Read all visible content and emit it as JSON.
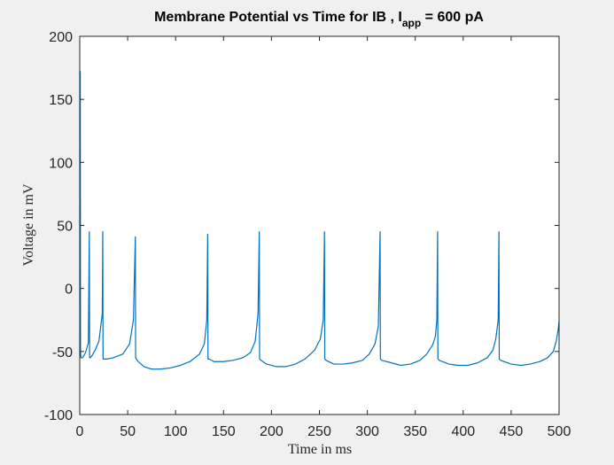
{
  "chart_data": {
    "type": "line",
    "title": {
      "pre": "Membrane Potential vs Time for  IB , I",
      "sub": "app",
      "post": " =  600  pA"
    },
    "xlabel": "Time in ms",
    "ylabel": "Voltage in mV",
    "xlim": [
      0,
      500
    ],
    "ylim": [
      -100,
      200
    ],
    "xticks": [
      0,
      50,
      100,
      150,
      200,
      250,
      300,
      350,
      400,
      450,
      500
    ],
    "yticks": [
      -100,
      -50,
      0,
      50,
      100,
      150,
      200
    ],
    "xtick_labels": [
      "0",
      "50",
      "100",
      "150",
      "200",
      "250",
      "300",
      "350",
      "400",
      "450",
      "500"
    ],
    "ytick_labels": [
      "-100",
      "-50",
      "0",
      "50",
      "100",
      "150",
      "200"
    ],
    "grid": false,
    "colors": {
      "line": "#0072bd",
      "axes_bg": "#ffffff",
      "figure_bg": "#f0f0f0",
      "axis": "#262626"
    },
    "series": [
      {
        "x": [
          0,
          0.5,
          0.8,
          1.2,
          3,
          6,
          9,
          10,
          10.3,
          11,
          13,
          16,
          20,
          23.5,
          24,
          24.3,
          25,
          28,
          35,
          45,
          52,
          56,
          58,
          58.3,
          59,
          61,
          67,
          75,
          84,
          95,
          105,
          115,
          125,
          130,
          132.5,
          133.5,
          133.8,
          135,
          140,
          150,
          160,
          170,
          178,
          183,
          186,
          187.3,
          187.6,
          189,
          195,
          205,
          215,
          225,
          235,
          245,
          251,
          254,
          255.3,
          255.6,
          257,
          265,
          275,
          285,
          295,
          302,
          308,
          311.5,
          313.3,
          313.6,
          315,
          325,
          335,
          345,
          355,
          362,
          368,
          371,
          372.5,
          373.3,
          373.6,
          375,
          385,
          395,
          405,
          415,
          425,
          431,
          434,
          436.5,
          437.3,
          437.6,
          439,
          450,
          460,
          470,
          480,
          488,
          494,
          497,
          499,
          500
        ],
        "y": [
          -50,
          172,
          -50,
          -55,
          -55,
          -51,
          -43,
          45,
          -55,
          -55,
          -53,
          -49,
          -42,
          -20,
          45,
          -56,
          -56,
          -56,
          -55,
          -52,
          -44,
          -25,
          41,
          -55,
          -56,
          -58,
          -62,
          -64,
          -64,
          -63,
          -61,
          -58,
          -52,
          -44,
          -25,
          43,
          -56,
          -56,
          -58,
          -58,
          -57,
          -55,
          -51,
          -42,
          -20,
          45,
          -56,
          -57,
          -60,
          -62,
          -62,
          -60,
          -56,
          -49,
          -40,
          -25,
          45,
          -56,
          -57,
          -60,
          -60,
          -59,
          -57,
          -52,
          -44,
          -30,
          45,
          -56,
          -57,
          -59,
          -61,
          -60,
          -57,
          -52,
          -45,
          -38,
          -25,
          45,
          -56,
          -57,
          -60,
          -61,
          -61,
          -59,
          -55,
          -49,
          -40,
          -25,
          45,
          -56,
          -57,
          -60,
          -61,
          -60,
          -58,
          -55,
          -50,
          -42,
          -33,
          -26
        ]
      }
    ]
  }
}
